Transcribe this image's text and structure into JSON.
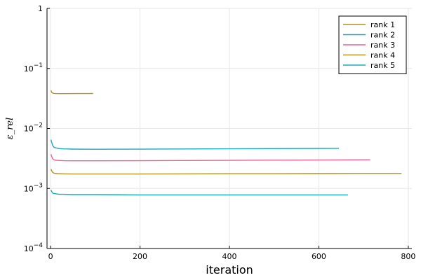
{
  "chart_data": {
    "type": "line",
    "title": "",
    "xlabel": "iteration",
    "ylabel": "ε_rel",
    "xlim": [
      -8,
      808
    ],
    "ylim": [
      0.0001,
      1
    ],
    "yscale": "log",
    "grid": true,
    "legend_position": "top-right",
    "x_ticks": [
      {
        "value": 0,
        "label": "0"
      },
      {
        "value": 200,
        "label": "200"
      },
      {
        "value": 400,
        "label": "400"
      },
      {
        "value": 600,
        "label": "600"
      },
      {
        "value": 800,
        "label": "800"
      }
    ],
    "y_ticks": [
      {
        "value": 0.0001,
        "base": "10",
        "exp": "−4"
      },
      {
        "value": 0.001,
        "base": "10",
        "exp": "−3"
      },
      {
        "value": 0.01,
        "base": "10",
        "exp": "−2"
      },
      {
        "value": 0.1,
        "base": "10",
        "exp": "−1"
      },
      {
        "value": 1,
        "base": "1",
        "exp": ""
      }
    ],
    "series": [
      {
        "name": "rank 1",
        "color": "#b39022",
        "x": [
          1,
          2,
          3,
          5,
          8,
          12,
          20,
          35,
          60,
          95
        ],
        "y": [
          0.043,
          0.0405,
          0.0395,
          0.0388,
          0.0384,
          0.0382,
          0.0381,
          0.0381,
          0.0382,
          0.0383
        ]
      },
      {
        "name": "rank 2",
        "color": "#1aabb8",
        "x": [
          1,
          2,
          4,
          6,
          9,
          14,
          20,
          30,
          50,
          100,
          200,
          300,
          400,
          500,
          600,
          645
        ],
        "y": [
          0.0065,
          0.006,
          0.0054,
          0.005,
          0.0048,
          0.0047,
          0.00462,
          0.00457,
          0.00453,
          0.0045,
          0.00452,
          0.00455,
          0.00458,
          0.00461,
          0.00465,
          0.00467
        ]
      },
      {
        "name": "rank 3",
        "color": "#e8638b",
        "x": [
          1,
          2,
          4,
          6,
          9,
          14,
          20,
          30,
          50,
          100,
          200,
          300,
          400,
          500,
          600,
          715
        ],
        "y": [
          0.0037,
          0.0035,
          0.0032,
          0.00305,
          0.00298,
          0.00294,
          0.00292,
          0.0029,
          0.00289,
          0.00289,
          0.0029,
          0.00292,
          0.00294,
          0.00296,
          0.00298,
          0.003
        ]
      },
      {
        "name": "rank 4",
        "color": "#b39022",
        "x": [
          1,
          2,
          4,
          6,
          9,
          14,
          20,
          30,
          50,
          100,
          200,
          300,
          400,
          500,
          600,
          700,
          785
        ],
        "y": [
          0.0021,
          0.002,
          0.00188,
          0.00182,
          0.00179,
          0.00177,
          0.00176,
          0.00175,
          0.00174,
          0.00174,
          0.00174,
          0.00175,
          0.00176,
          0.00176,
          0.00177,
          0.00178,
          0.00178
        ]
      },
      {
        "name": "rank 5",
        "color": "#1aabb8",
        "x": [
          1,
          2,
          4,
          6,
          9,
          14,
          20,
          30,
          50,
          100,
          200,
          300,
          400,
          500,
          600,
          665
        ],
        "y": [
          0.00095,
          0.0009,
          0.00085,
          0.00083,
          0.00082,
          0.00081,
          0.0008,
          0.0008,
          0.00079,
          0.00079,
          0.00078,
          0.00078,
          0.00078,
          0.00078,
          0.00078,
          0.00078
        ]
      }
    ]
  }
}
